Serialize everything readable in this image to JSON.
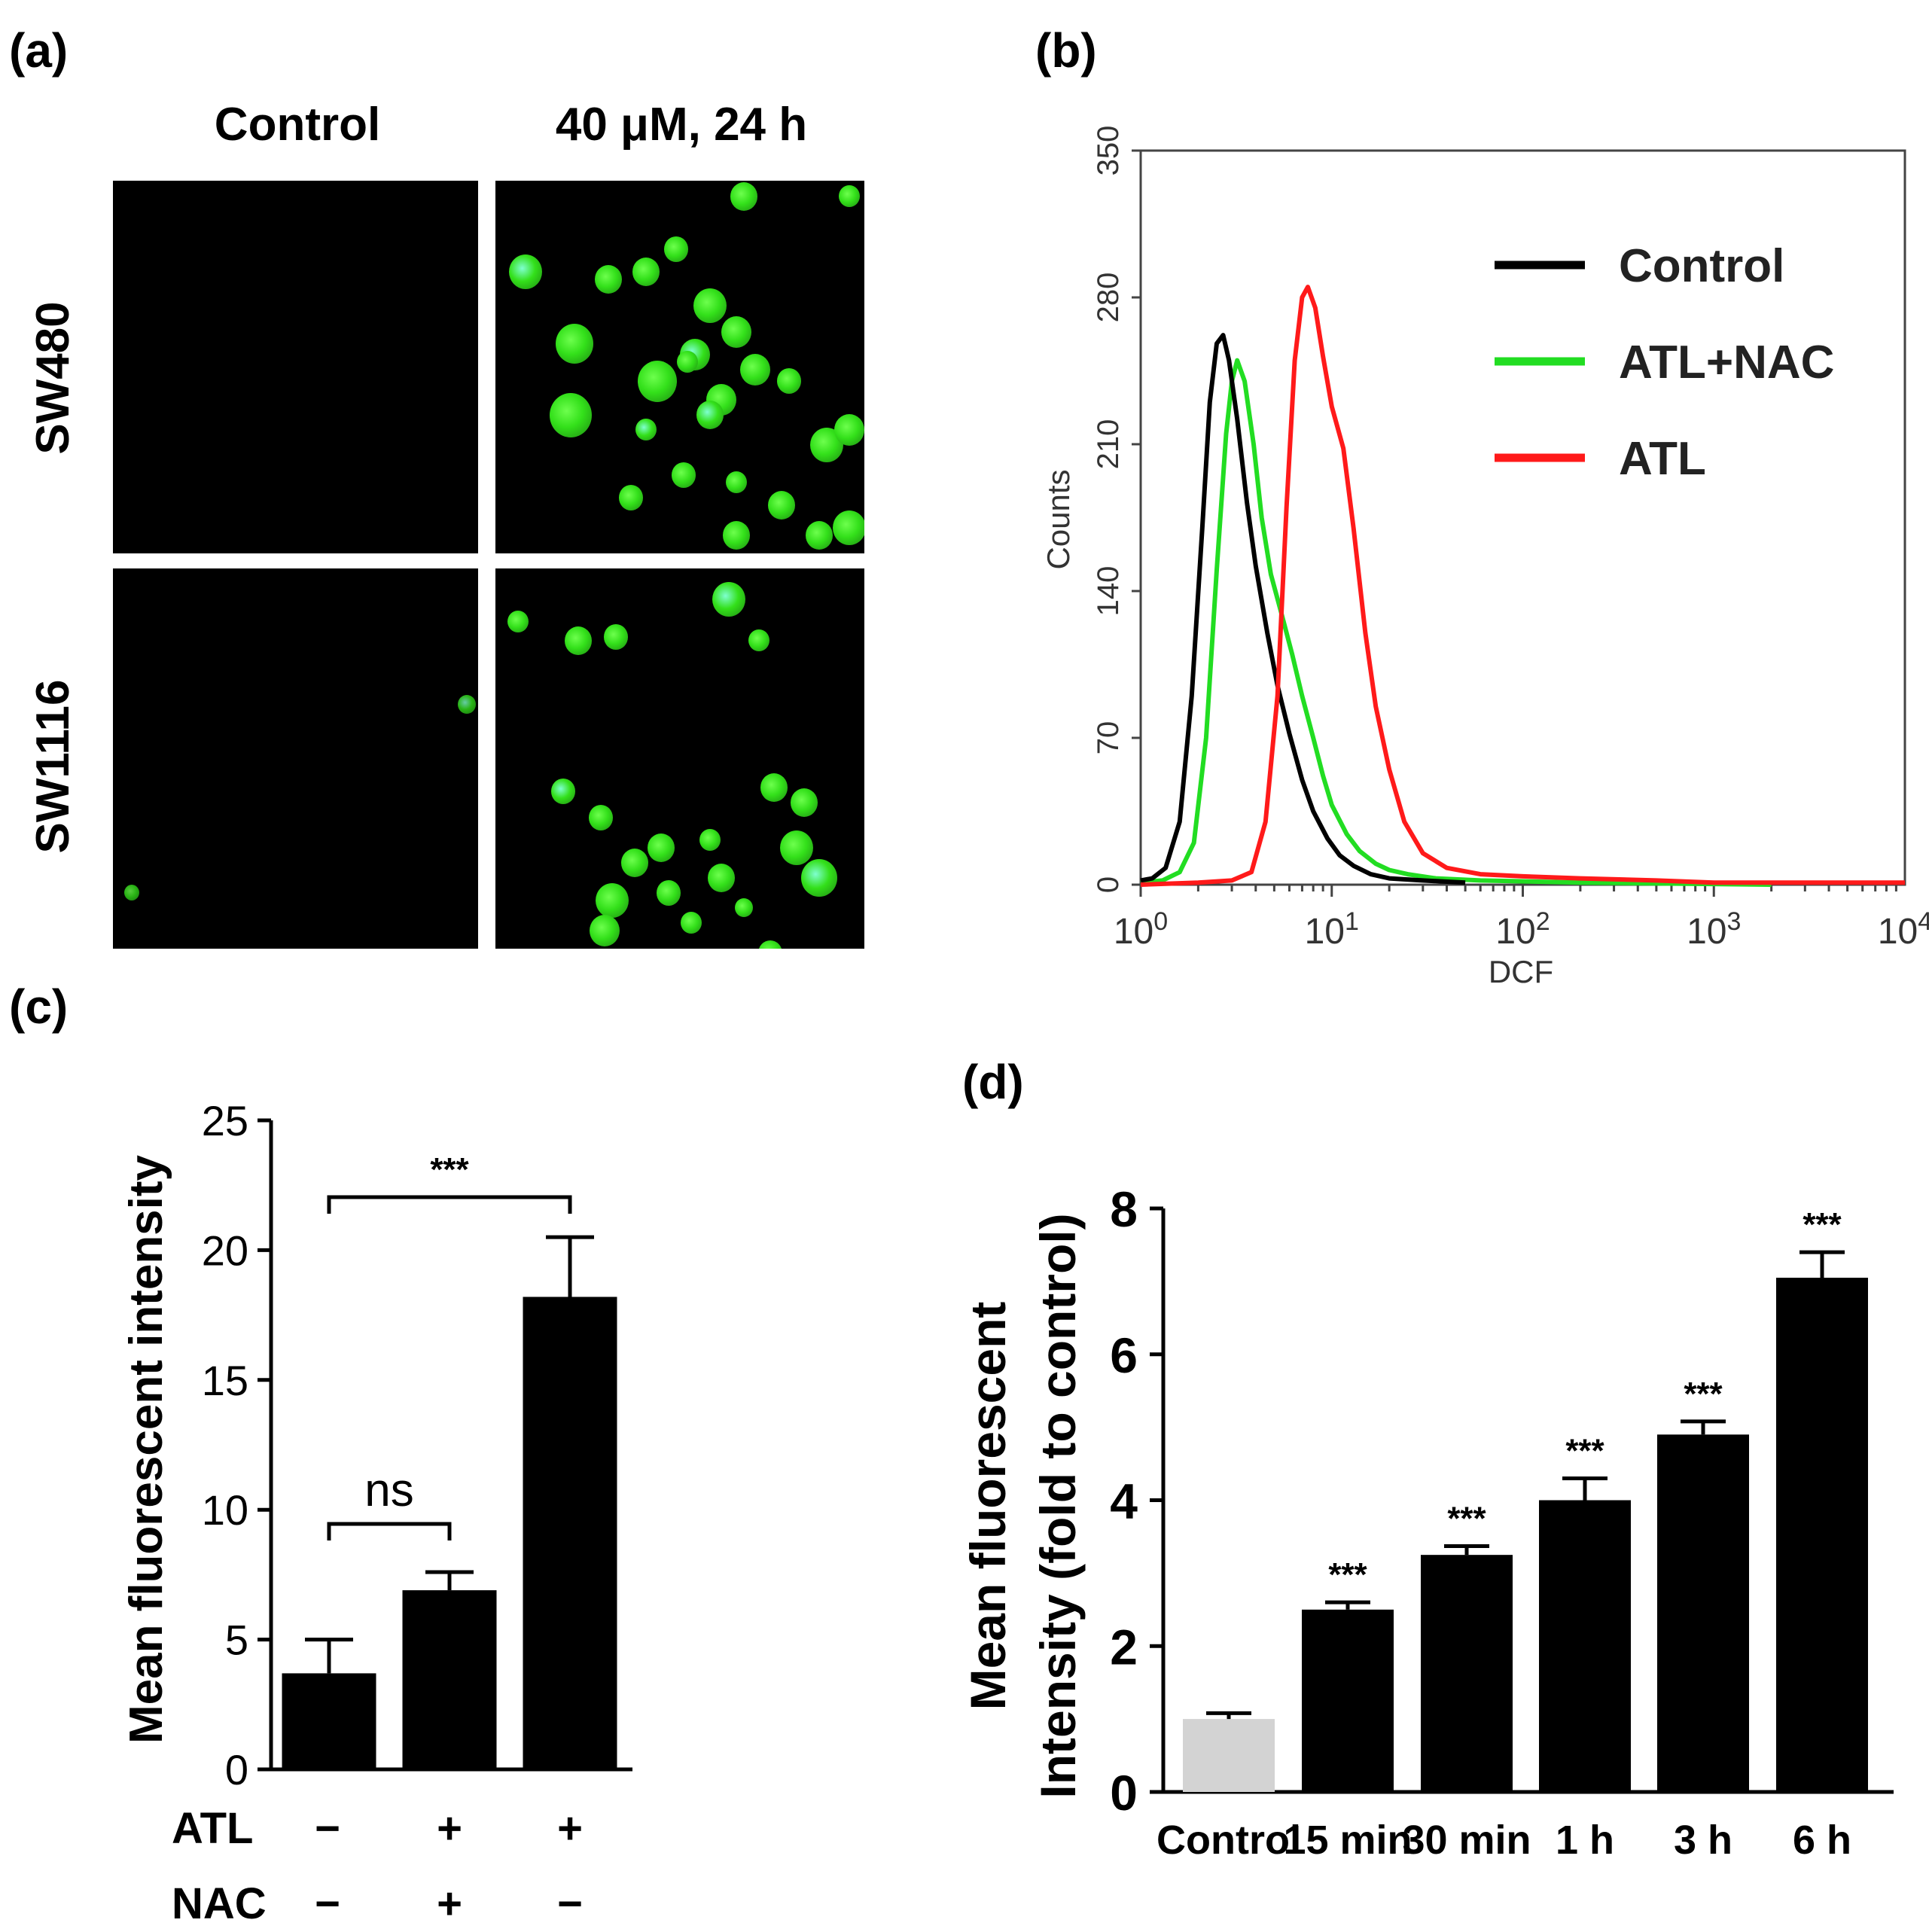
{
  "panel_labels": {
    "a": "(a)",
    "b": "(b)",
    "c": "(c)",
    "d": "(d)"
  },
  "panel_a": {
    "columns": [
      "Control",
      "40 μM, 24 h"
    ],
    "rows": [
      "SW480",
      "SW1116"
    ],
    "cell_color": "#33e01a",
    "highlight_color": "#7fffd0"
  },
  "chart_data": [
    {
      "panel": "b",
      "type": "line",
      "xlabel": "DCF",
      "ylabel": "Counts",
      "xscale": "log",
      "xlim": [
        1,
        10000
      ],
      "ylim": [
        0,
        350
      ],
      "xticks": [
        {
          "base": "10",
          "exp": "0"
        },
        {
          "base": "10",
          "exp": "1"
        },
        {
          "base": "10",
          "exp": "2"
        },
        {
          "base": "10",
          "exp": "3"
        },
        {
          "base": "10",
          "exp": "4"
        }
      ],
      "yticks": [
        "0",
        "70",
        "140",
        "210",
        "280",
        "350"
      ],
      "legend_position": "top-right",
      "series": [
        {
          "name": "Control",
          "color": "#000000",
          "x": [
            1.0,
            1.15,
            1.35,
            1.6,
            1.85,
            2.1,
            2.3,
            2.5,
            2.7,
            2.9,
            3.2,
            3.6,
            4.0,
            4.6,
            5.2,
            6.0,
            7.0,
            8.0,
            9.5,
            11,
            13,
            16,
            20,
            30,
            50
          ],
          "y": [
            2,
            3,
            8,
            30,
            90,
            170,
            230,
            258,
            262,
            250,
            222,
            182,
            152,
            120,
            95,
            72,
            50,
            35,
            22,
            14,
            9,
            5,
            3,
            2,
            1
          ]
        },
        {
          "name": "ATL+NAC",
          "color": "#22dd22",
          "x": [
            1.0,
            1.3,
            1.6,
            1.9,
            2.2,
            2.5,
            2.8,
            3.0,
            3.2,
            3.5,
            3.9,
            4.3,
            4.8,
            5.5,
            6.2,
            7.0,
            8.0,
            9.0,
            10,
            12,
            14,
            17,
            20,
            25,
            35,
            60,
            200,
            2000
          ],
          "y": [
            1,
            2,
            6,
            20,
            70,
            150,
            215,
            240,
            250,
            240,
            210,
            175,
            148,
            128,
            110,
            90,
            70,
            52,
            38,
            24,
            16,
            10,
            7,
            5,
            3,
            2,
            1,
            0
          ]
        },
        {
          "name": "ATL",
          "color": "#ff1a1a",
          "x": [
            1.0,
            2.0,
            3.0,
            3.8,
            4.5,
            5.2,
            5.8,
            6.4,
            7.0,
            7.5,
            8.2,
            9.0,
            10,
            11.5,
            13,
            15,
            17,
            20,
            24,
            30,
            40,
            60,
            100,
            200,
            500,
            1000,
            10000
          ],
          "y": [
            0,
            1,
            2,
            6,
            30,
            90,
            180,
            250,
            280,
            285,
            275,
            252,
            228,
            208,
            170,
            120,
            85,
            55,
            30,
            15,
            8,
            5,
            4,
            3,
            2,
            1,
            1
          ]
        }
      ]
    },
    {
      "panel": "c",
      "type": "bar",
      "ylabel": "Mean fluorescent intensity",
      "ylim": [
        0,
        25
      ],
      "yticks": [
        "0",
        "5",
        "10",
        "15",
        "20",
        "25"
      ],
      "categories": [
        "1",
        "2",
        "3"
      ],
      "values": [
        3.7,
        6.9,
        18.2
      ],
      "errors": [
        1.3,
        0.7,
        2.3
      ],
      "bar_color": "#000000",
      "factor_rows": [
        {
          "name": "ATL",
          "signs": [
            "−",
            "+",
            "+"
          ]
        },
        {
          "name": "NAC",
          "signs": [
            "−",
            "+",
            "−"
          ]
        }
      ],
      "annotations": [
        {
          "text": "ns",
          "from": 0,
          "to": 1
        },
        {
          "text": "***",
          "from": 0,
          "to": 2
        }
      ]
    },
    {
      "panel": "d",
      "type": "bar",
      "ylabel_lines": [
        "Mean fluorescent",
        "Intensity (fold to control)"
      ],
      "ylim": [
        0,
        8
      ],
      "yticks": [
        "0",
        "2",
        "4",
        "6",
        "8"
      ],
      "categories": [
        "Control",
        "15 min",
        "30 min",
        "1 h",
        "3 h",
        "6 h"
      ],
      "values": [
        1.0,
        2.5,
        3.25,
        4.0,
        4.9,
        7.05
      ],
      "errors": [
        0.08,
        0.1,
        0.12,
        0.3,
        0.18,
        0.35
      ],
      "bar_colors": [
        "#d3d3d3",
        "#000000",
        "#000000",
        "#000000",
        "#000000",
        "#000000"
      ],
      "significance": [
        "",
        "***",
        "***",
        "***",
        "***",
        "***"
      ]
    }
  ]
}
